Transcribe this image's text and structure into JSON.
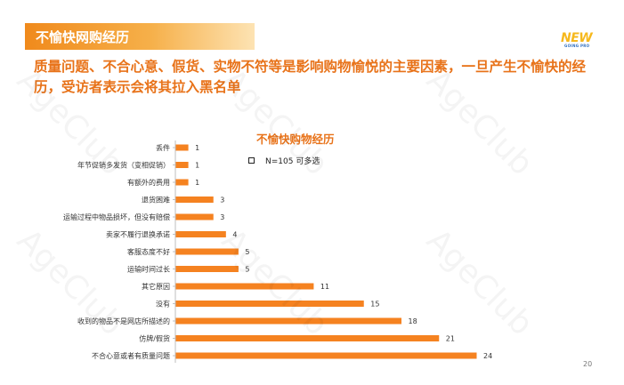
{
  "header": {
    "title": "不愉快网购经历",
    "logo_text": "NEW",
    "logo_subtext": "GOING PRO"
  },
  "headline": "质量问题、不合心意、假货、实物不符等是影响购物愉悦的主要因素，一旦产生不愉快的经历，受访者表示会将其拉入黑名单",
  "watermark": "AgeClub",
  "footer": {
    "page_number": "20"
  },
  "chart_data": {
    "type": "bar",
    "orientation": "horizontal",
    "title": "不愉快购物经历",
    "note": "N=105  可多选",
    "categories": [
      "丢件",
      "年节促销多发货（变相促销）",
      "有额外的费用",
      "退货困难",
      "运输过程中物品损坏，但没有赔偿",
      "卖家不履行退换承诺",
      "客服态度不好",
      "运输时间过长",
      "其它原因",
      "没有",
      "收到的物品不是网店所描述的",
      "仿牌/假货",
      "不合心意或者有质量问题"
    ],
    "values": [
      1,
      1,
      1,
      3,
      3,
      4,
      5,
      5,
      11,
      15,
      18,
      21,
      24
    ],
    "bar_color": "#f58220",
    "xlim": [
      0,
      24
    ],
    "grid": false,
    "legend": "none"
  }
}
